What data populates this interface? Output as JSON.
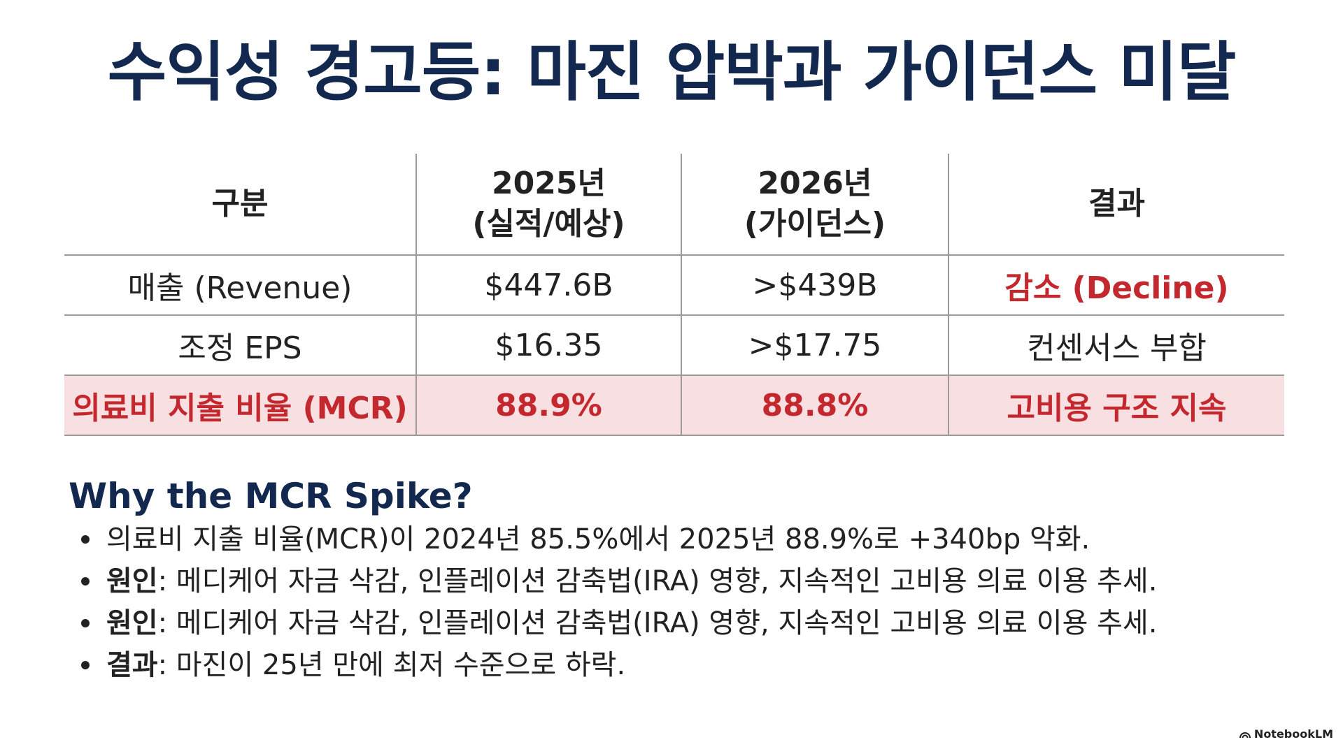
{
  "title": "수익성 경고등: 마진 압박과 가이던스 미달",
  "table": {
    "headers": [
      [
        "구분"
      ],
      [
        "2025년",
        "(실적/예상)"
      ],
      [
        "2026년",
        "(가이던스)"
      ],
      [
        "결과"
      ]
    ],
    "rows": [
      {
        "label": "매출 (Revenue)",
        "y2025": "$447.6B",
        "y2026": ">$439B",
        "result": "감소 (Decline)"
      },
      {
        "label": "조정 EPS",
        "y2025": "$16.35",
        "y2026": ">$17.75",
        "result": "컨센서스 부합"
      },
      {
        "label": "의료비 지출 비율 (MCR)",
        "y2025": "88.9%",
        "y2026": "88.8%",
        "result": "고비용 구조 지속"
      }
    ]
  },
  "why": {
    "heading": "Why the MCR Spike?",
    "bullets": [
      {
        "bold": "",
        "text": "의료비 지출 비율(MCR)이 2024년 85.5%에서 2025년 88.9%로 +340bp 악화."
      },
      {
        "bold": "원인",
        "text": ": 메디케어 자금 삭감, 인플레이션 감축법(IRA) 영향, 지속적인 고비용 의료 이용 추세."
      },
      {
        "bold": "원인",
        "text": ": 메디케어 자금 삭감, 인플레이션 감축법(IRA) 영향, 지속적인 고비용 의료 이용 추세."
      },
      {
        "bold": "결과",
        "text": ": 마진이 25년 만에 최저 수준으로 하락."
      }
    ]
  },
  "brand": "NotebookLM",
  "colors": {
    "title": "#13284f",
    "alert_red": "#c2282e",
    "highlight_bg": "#f8dfe1",
    "rule": "#9a9a9a"
  }
}
